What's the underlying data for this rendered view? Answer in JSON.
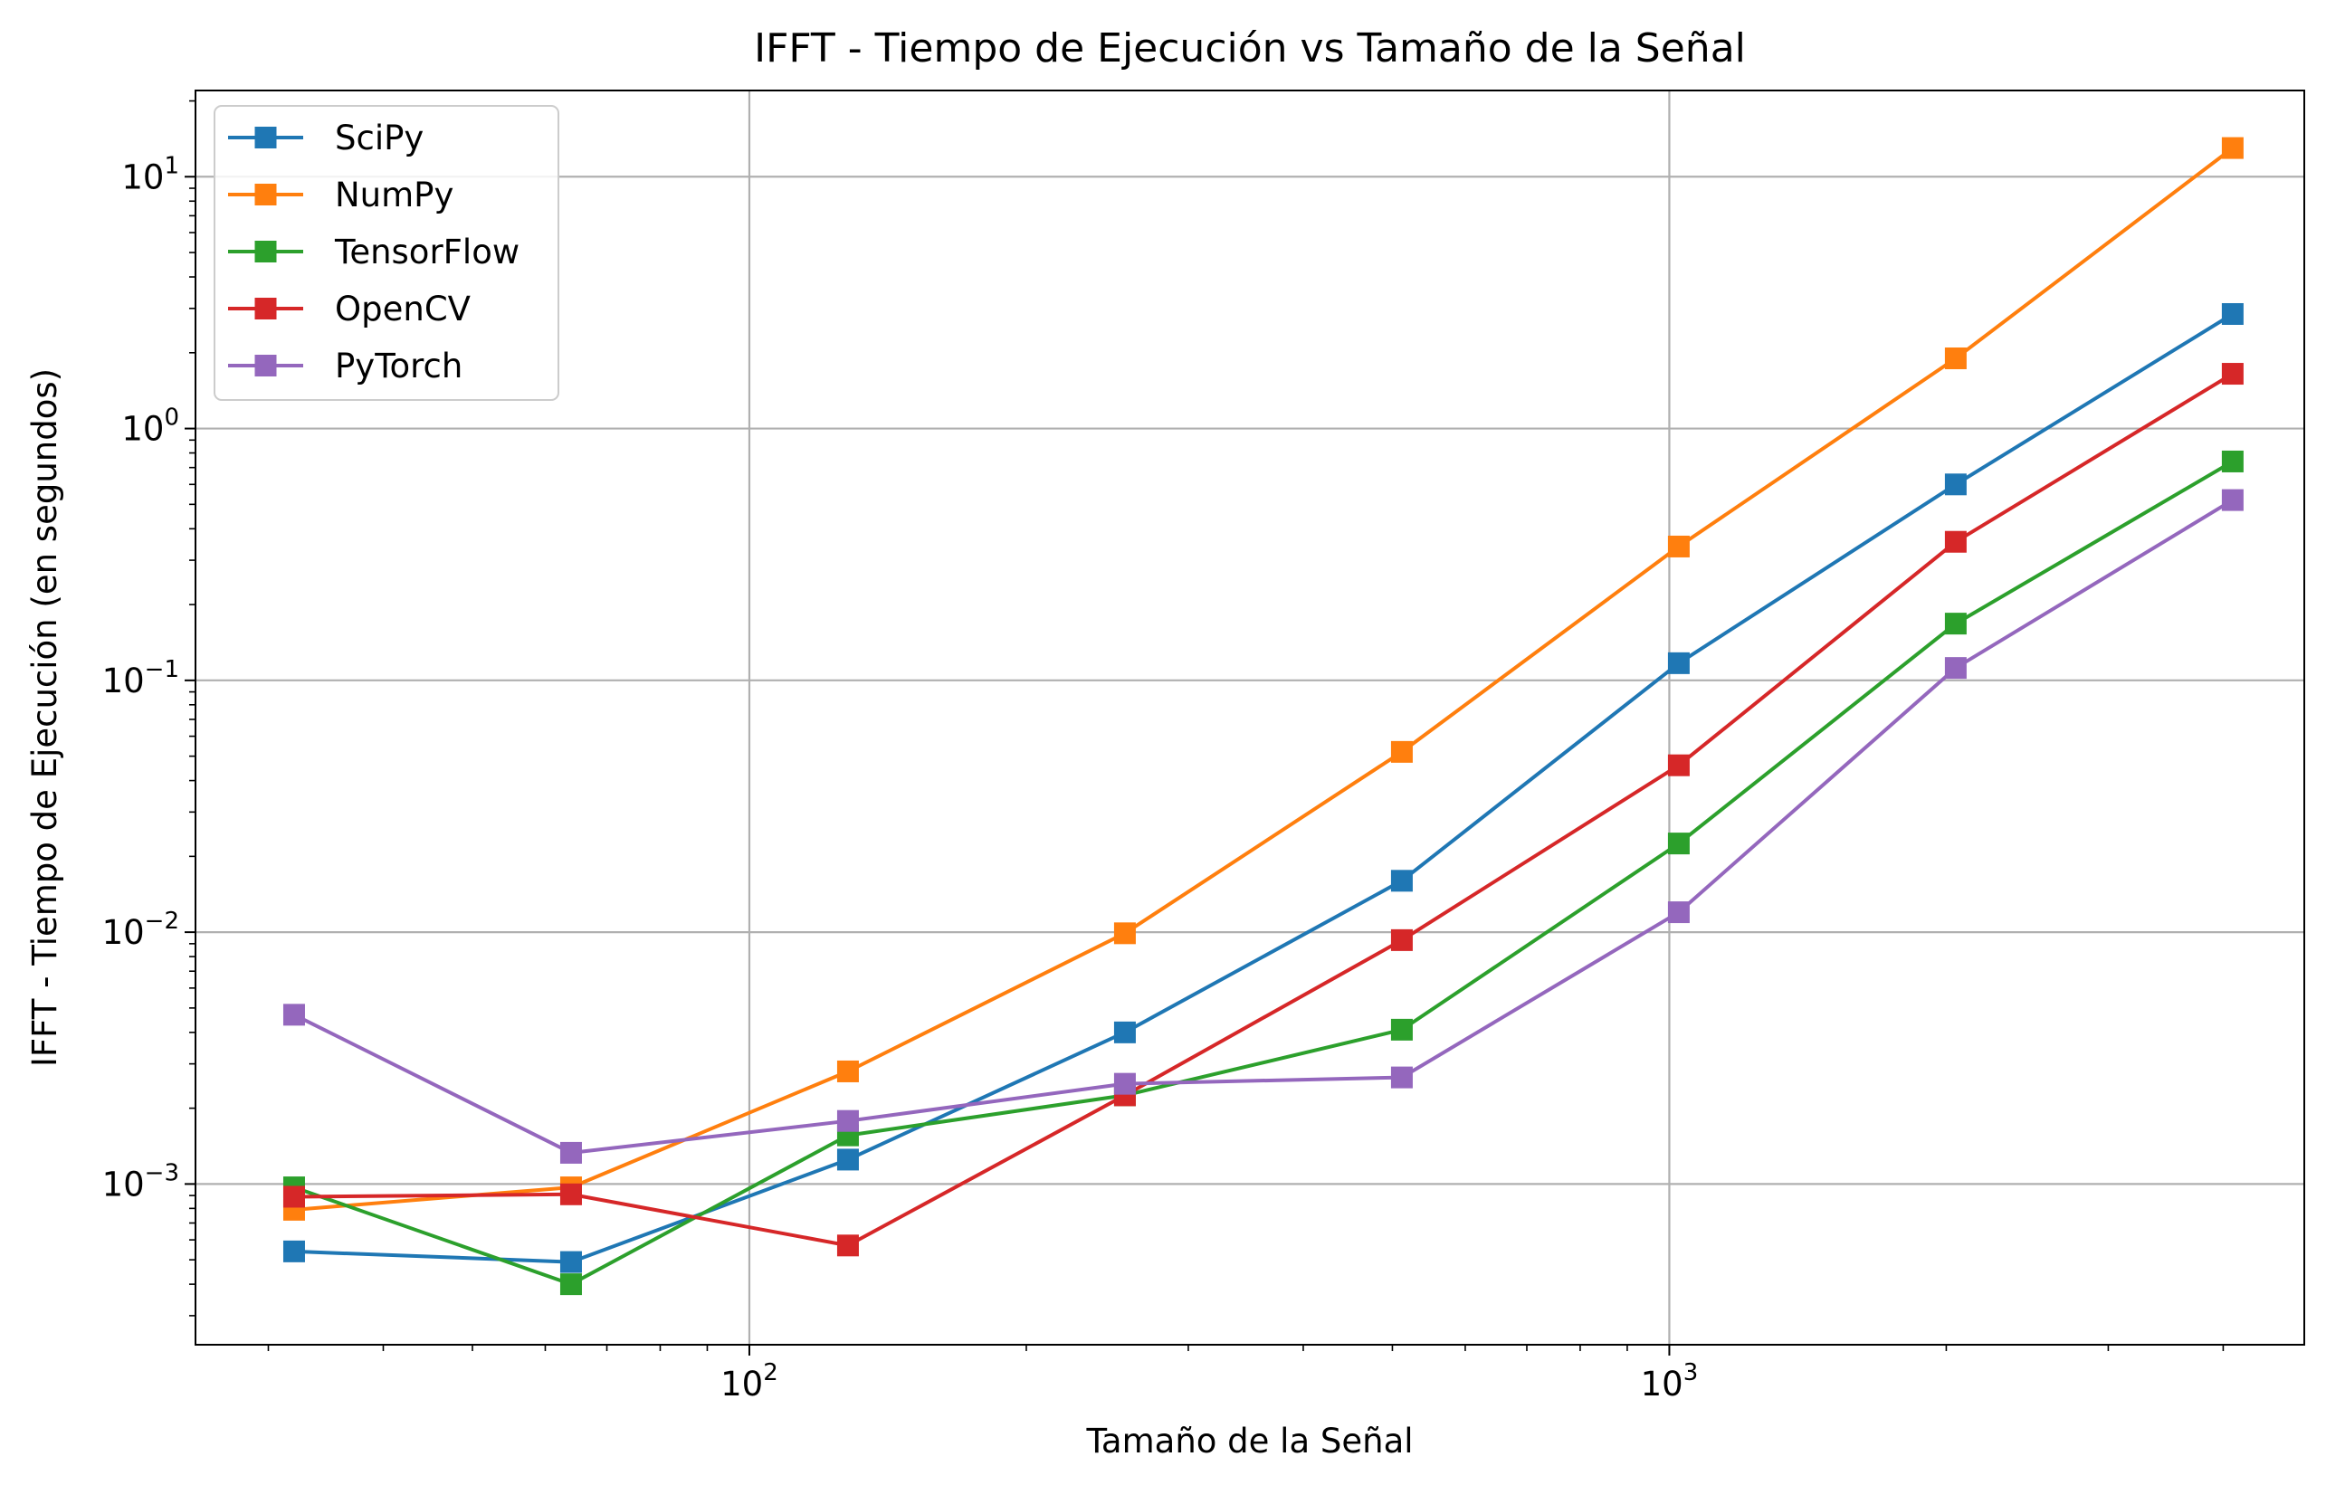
{
  "chart_data": {
    "type": "line",
    "title": "IFFT - Tiempo de Ejecución vs Tamaño de la Señal",
    "xlabel": "Tamaño de la Señal",
    "ylabel": "IFFT - Tiempo de Ejecución (en segundos)",
    "xscale": "log",
    "yscale": "log",
    "xlim": [
      25,
      4900
    ],
    "ylim": [
      0.00023,
      22
    ],
    "grid": true,
    "legend_position": "top-left",
    "x_ticks": [
      {
        "value": 100,
        "base": "10",
        "exp": "2"
      },
      {
        "value": 1000,
        "base": "10",
        "exp": "3"
      }
    ],
    "y_ticks": [
      {
        "value": 0.001,
        "base": "10",
        "exp": "−3"
      },
      {
        "value": 0.01,
        "base": "10",
        "exp": "−2"
      },
      {
        "value": 0.1,
        "base": "10",
        "exp": "−1"
      },
      {
        "value": 1,
        "base": "10",
        "exp": "0"
      },
      {
        "value": 10,
        "base": "10",
        "exp": "1"
      }
    ],
    "x": [
      32,
      64,
      128,
      256,
      512,
      1024,
      2048,
      4096
    ],
    "series": [
      {
        "name": "SciPy",
        "color": "#1f77b4",
        "values": [
          0.00054,
          0.00049,
          0.00125,
          0.004,
          0.016,
          0.117,
          0.6,
          2.85
        ]
      },
      {
        "name": "NumPy",
        "color": "#ff7f0e",
        "values": [
          0.00079,
          0.00097,
          0.0028,
          0.0099,
          0.052,
          0.34,
          1.9,
          13.0
        ]
      },
      {
        "name": "TensorFlow",
        "color": "#2ca02c",
        "values": [
          0.00097,
          0.0004,
          0.00156,
          0.00225,
          0.0041,
          0.0225,
          0.168,
          0.74
        ]
      },
      {
        "name": "OpenCV",
        "color": "#d62728",
        "values": [
          0.00089,
          0.00091,
          0.00057,
          0.00225,
          0.0093,
          0.046,
          0.355,
          1.65
        ]
      },
      {
        "name": "PyTorch",
        "color": "#9467bd",
        "values": [
          0.0047,
          0.00133,
          0.00178,
          0.0025,
          0.00265,
          0.012,
          0.112,
          0.52
        ]
      }
    ]
  }
}
